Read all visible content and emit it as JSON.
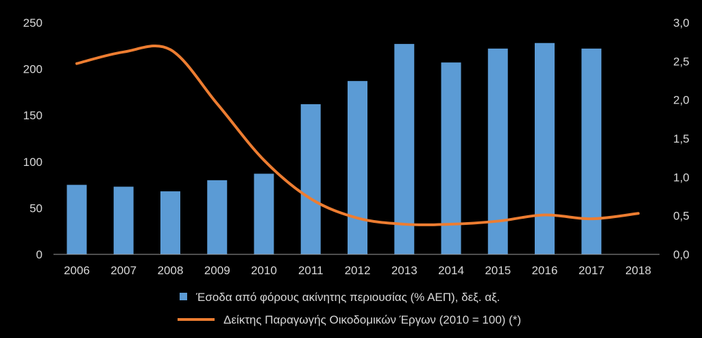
{
  "chart_data": {
    "type": "bar",
    "categories": [
      "2006",
      "2007",
      "2008",
      "2009",
      "2010",
      "2011",
      "2012",
      "2013",
      "2014",
      "2015",
      "2016",
      "2017",
      "2018"
    ],
    "left_axis": {
      "min": 0,
      "max": 250,
      "step": 50,
      "tick_labels": [
        "0",
        "50",
        "100",
        "150",
        "200",
        "250"
      ]
    },
    "right_axis": {
      "min": 0,
      "max": 3.0,
      "step": 0.5,
      "tick_labels": [
        "0,0",
        "0,5",
        "1,0",
        "1,5",
        "2,0",
        "2,5",
        "3,0"
      ]
    },
    "series": [
      {
        "name": "Έσοδα από φόρους ακίνητης περιουσίας (% ΑΕΠ), δεξ. αξ.",
        "type": "bar",
        "axis": "left",
        "color": "#5b9bd5",
        "values": [
          75,
          73,
          68,
          80,
          87,
          162,
          187,
          227,
          207,
          222,
          228,
          222,
          null
        ]
      },
      {
        "name": "Δείκτης Παραγωγής Οικοδομικών Έργων (2010 = 100) (*)",
        "type": "line",
        "axis": "right",
        "color": "#ed7d31",
        "values": [
          2.47,
          2.62,
          2.65,
          1.95,
          1.22,
          0.72,
          0.47,
          0.39,
          0.39,
          0.43,
          0.51,
          0.46,
          0.53
        ]
      }
    ],
    "legend": {
      "position": "bottom",
      "bar_label": "Έσοδα από φόρους ακίνητης περιουσίας (% ΑΕΠ), δεξ. αξ.",
      "line_label": "Δείκτης Παραγωγής Οικοδομικών Έργων (2010 = 100) (*)"
    },
    "grid": false
  }
}
